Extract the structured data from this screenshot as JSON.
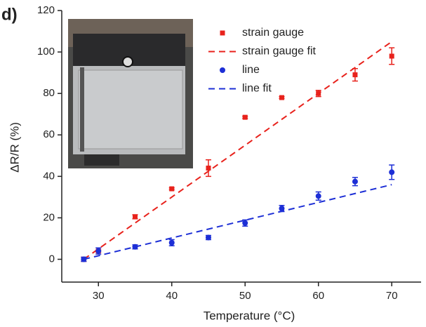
{
  "chart_data": {
    "type": "scatter",
    "panel_label": "d)",
    "x_label": "Temperature (°C)",
    "y_label": "ΔR/R (%)",
    "xlim": [
      25,
      74
    ],
    "ylim": [
      -11,
      120
    ],
    "xticks": [
      30,
      40,
      50,
      60,
      70
    ],
    "yticks": [
      0,
      20,
      40,
      60,
      80,
      100,
      120
    ],
    "legend": "top-right",
    "series": [
      {
        "name": "strain gauge",
        "type": "scatter",
        "marker": "square",
        "color": "#e8221c",
        "x": [
          28,
          30,
          35,
          40,
          45,
          50,
          55,
          60,
          65,
          70
        ],
        "values": [
          0,
          4,
          20.5,
          34,
          44,
          68.5,
          78,
          80,
          89,
          98
        ],
        "errors": [
          1,
          0.5,
          1,
          0.5,
          4,
          0.5,
          0.5,
          1.5,
          3,
          4
        ]
      },
      {
        "name": "strain gauge fit",
        "type": "line",
        "dash": true,
        "color": "#e8221c",
        "x": [
          28,
          70
        ],
        "values": [
          0,
          105
        ]
      },
      {
        "name": "line",
        "type": "scatter",
        "marker": "circle",
        "color": "#1d2fd6",
        "x": [
          28,
          30,
          35,
          40,
          45,
          50,
          55,
          60,
          65,
          70
        ],
        "values": [
          0,
          4,
          6,
          8,
          10.5,
          17.5,
          24.5,
          30.5,
          37.5,
          42
        ],
        "errors": [
          1,
          1.5,
          1,
          1.5,
          1,
          1.5,
          1.5,
          2,
          2,
          3.5
        ]
      },
      {
        "name": "line fit",
        "type": "line",
        "dash": true,
        "color": "#1d2fd6",
        "x": [
          28,
          70
        ],
        "values": [
          0,
          36
        ]
      }
    ]
  }
}
